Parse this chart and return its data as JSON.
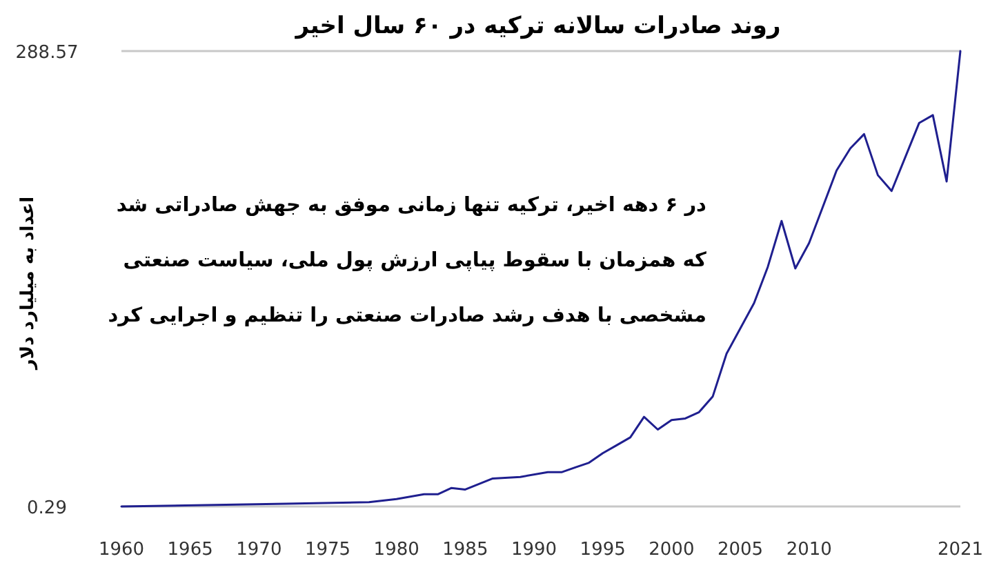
{
  "chart_data": {
    "type": "line",
    "title": "روند صادرات سالانه ترکیه در ۶۰ سال اخیر",
    "ylabel": "اعداد به میلیارد دلار",
    "annotations": [
      "در ۶ دهه اخیر، ترکیه تنها زمانی موفق به جهش صادراتی شد",
      "که همزمان با سقوط پیاپی ارزش پول ملی، سیاست صنعتی",
      "مشخصی با هدف رشد صادرات صنعتی را تنظیم و اجرایی کرد"
    ],
    "x": [
      1960,
      1972,
      1978,
      1980,
      1982,
      1983,
      1984,
      1985,
      1987,
      1989,
      1991,
      1992,
      1993,
      1994,
      1995,
      1996,
      1997,
      1998,
      1999,
      2000,
      2001,
      2002,
      2003,
      2004,
      2006,
      2007,
      2008,
      2009,
      2010,
      2011,
      2012,
      2013,
      2014,
      2015,
      2016,
      2018,
      2019,
      2020,
      2021
    ],
    "series": [
      {
        "color": "#1f1f8f",
        "values": [
          0.29,
          2,
          3,
          5,
          8,
          8,
          12,
          11,
          18,
          19,
          22,
          22,
          25,
          28,
          34,
          39,
          44,
          57,
          49,
          55,
          56,
          60,
          70,
          97,
          129,
          152,
          181,
          151,
          167,
          190,
          213,
          227,
          236,
          210,
          200,
          243,
          248,
          206,
          288.57
        ]
      }
    ],
    "xlim": [
      1960,
      2021
    ],
    "xticks": [
      1960,
      1965,
      1970,
      1975,
      1980,
      1985,
      1990,
      1995,
      2000,
      2005,
      2010,
      2021
    ],
    "ylim": [
      0.29,
      288.57
    ],
    "yticks": [
      0.29,
      288.57
    ],
    "marker": "none",
    "line_style": "solid"
  }
}
